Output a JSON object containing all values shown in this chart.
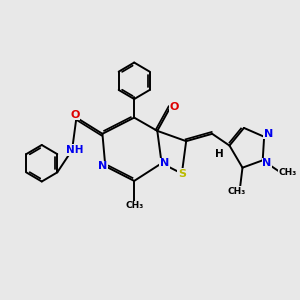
{
  "bg_color": "#e8e8e8",
  "bond_color": "#000000",
  "n_color": "#0000ee",
  "o_color": "#dd0000",
  "s_color": "#bbbb00",
  "lw": 1.4,
  "fig_w": 3.0,
  "fig_h": 3.0,
  "dpi": 100,
  "xlim": [
    0,
    10
  ],
  "ylim": [
    0,
    10
  ]
}
